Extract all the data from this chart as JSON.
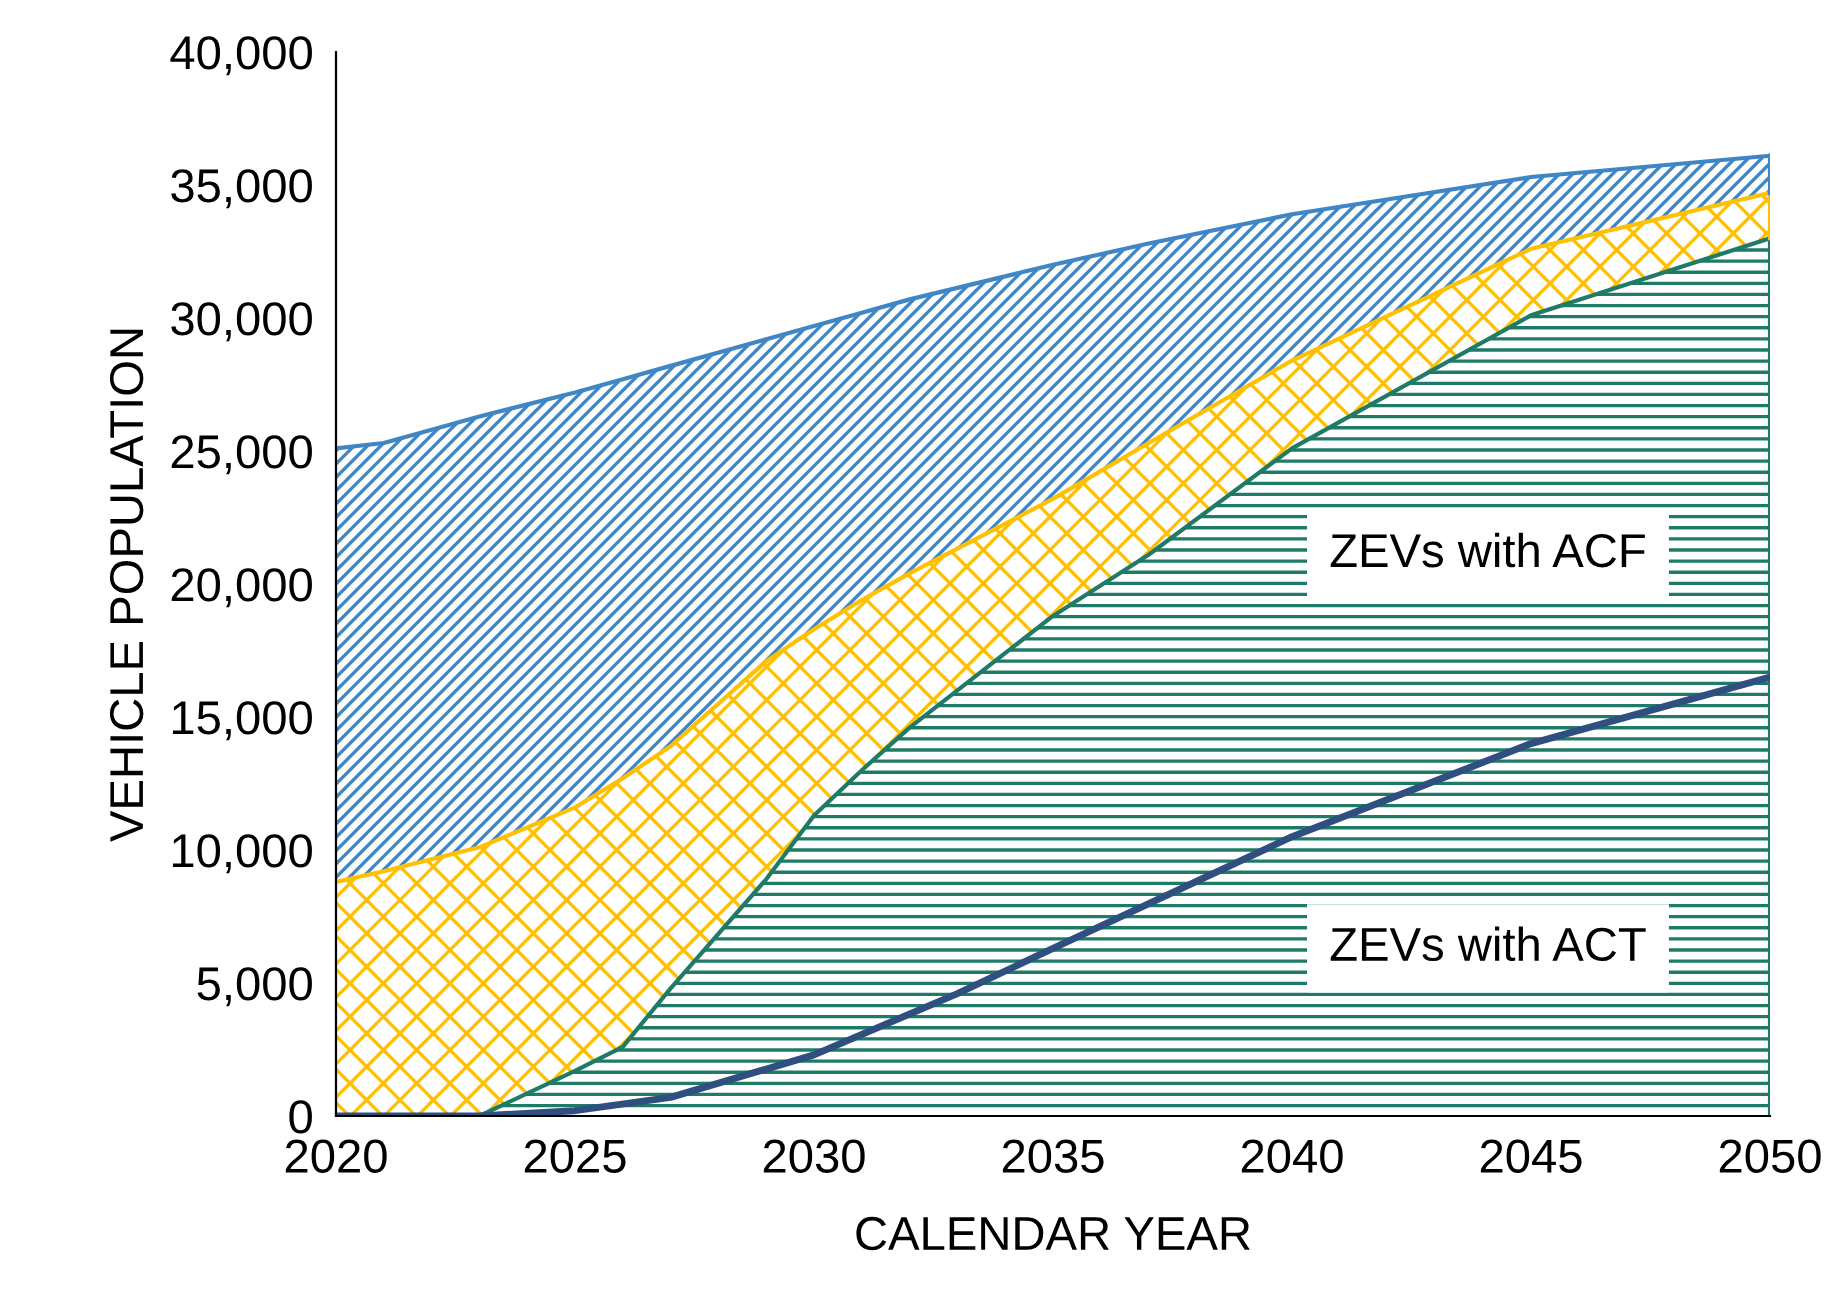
{
  "chart_data": {
    "type": "area",
    "stacked": true,
    "xlabel": "CALENDAR YEAR",
    "ylabel": "VEHICLE POPULATION",
    "xlim": [
      2020,
      2050
    ],
    "xticks": [
      2020,
      2025,
      2030,
      2035,
      2040,
      2045,
      2050
    ],
    "ylim": [
      0,
      40000
    ],
    "yticks": [
      {
        "value": 0,
        "label": "0"
      },
      {
        "value": 5000,
        "label": "5,000"
      },
      {
        "value": 10000,
        "label": "10,000"
      },
      {
        "value": 15000,
        "label": "15,000"
      },
      {
        "value": 20000,
        "label": "20,000"
      },
      {
        "value": 25000,
        "label": "25,000"
      },
      {
        "value": 30000,
        "label": "30,000"
      },
      {
        "value": 35000,
        "label": "35,000"
      },
      {
        "value": 40000,
        "label": "40,000"
      }
    ],
    "grid": false,
    "legend": false,
    "x": [
      2020,
      2021,
      2023,
      2025,
      2026,
      2027,
      2029,
      2030,
      2031,
      2032,
      2035,
      2037,
      2040,
      2045,
      2050
    ],
    "series": [
      {
        "name": "ZEVs with ACF",
        "color": "#1f7a68",
        "values": [
          0,
          0,
          0,
          1700,
          2600,
          4800,
          8900,
          11300,
          13000,
          14600,
          18800,
          21100,
          25100,
          30100,
          33000
        ]
      },
      {
        "color": "#ffc000",
        "values": [
          8800,
          9200,
          10100,
          9900,
          10100,
          9100,
          8200,
          7000,
          6400,
          5800,
          4400,
          4200,
          3300,
          2500,
          1700
        ]
      },
      {
        "color": "#3f86c6",
        "values": [
          16300,
          16100,
          16200,
          15600,
          15000,
          14300,
          12100,
          11400,
          10800,
          10300,
          8800,
          7500,
          5500,
          2700,
          1400
        ]
      },
      {
        "type": "line",
        "name": "ZEVs with ACT",
        "color": "#2e4f7f",
        "x": [
          2020,
          2023,
          2025,
          2027,
          2030,
          2033,
          2035,
          2040,
          2045,
          2050
        ],
        "values": [
          0,
          0,
          200,
          700,
          2300,
          4600,
          6300,
          10500,
          14000,
          16500
        ]
      }
    ]
  }
}
